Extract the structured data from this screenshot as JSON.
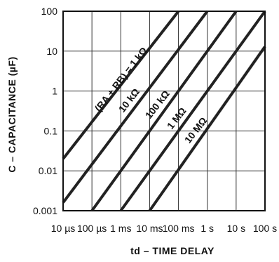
{
  "chart_data": {
    "type": "line",
    "xscale": "log",
    "yscale": "log",
    "xlim": [
      1e-05,
      100
    ],
    "ylim": [
      0.001,
      100
    ],
    "x_ticks": [
      1e-05,
      0.0001,
      0.001,
      0.01,
      0.1,
      1,
      10,
      100
    ],
    "x_tick_labels": [
      "10 µs",
      "100 µs",
      "1 ms",
      "10 ms",
      "100 ms",
      "1 s",
      "10 s",
      "100 s"
    ],
    "y_ticks": [
      0.001,
      0.01,
      0.1,
      1,
      10,
      100
    ],
    "y_tick_labels": [
      "0.001",
      "0.01",
      "0.1",
      "1",
      "10",
      "100"
    ],
    "grid": true,
    "xlabel": "td – TIME DELAY",
    "ylabel": "C – CAPACITANCE (µF)",
    "series": [
      {
        "name": "(RA + RB) = 1 kΩ",
        "x": [
          1e-05,
          0.1
        ],
        "y": [
          0.02,
          100
        ]
      },
      {
        "name": "10 kΩ",
        "x": [
          1e-05,
          1
        ],
        "y": [
          0.0016,
          100
        ]
      },
      {
        "name": "100 kΩ",
        "x": [
          0.0001,
          10
        ],
        "y": [
          0.001,
          100
        ]
      },
      {
        "name": "1 MΩ",
        "x": [
          0.001,
          100
        ],
        "y": [
          0.001,
          100
        ]
      },
      {
        "name": "10 MΩ",
        "x": [
          0.01,
          100
        ],
        "y": [
          0.001,
          13
        ]
      }
    ]
  }
}
